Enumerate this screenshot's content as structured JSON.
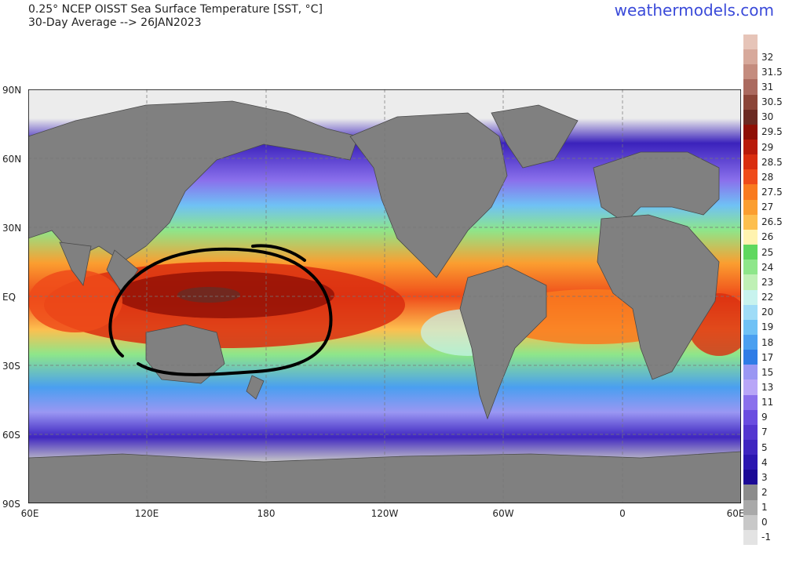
{
  "header": {
    "title": "0.25° NCEP OISST Sea Surface Temperature [SST, °C]",
    "subtitle": "30-Day Average --> 26JAN2023",
    "brand": "weathermodels.com"
  },
  "map": {
    "lat_labels": [
      "90N",
      "60N",
      "30N",
      "EQ",
      "30S",
      "60S",
      "90S"
    ],
    "lon_labels": [
      "60E",
      "120E",
      "180",
      "120W",
      "60W",
      "0",
      "60E"
    ],
    "annotation": "hand-drawn circle around the western Pacific warm pool"
  },
  "colorbar": {
    "levels": [
      {
        "label": "",
        "color": "#e6c4b8"
      },
      {
        "label": "32",
        "color": "#d7a99b"
      },
      {
        "label": "31.5",
        "color": "#c48c7e"
      },
      {
        "label": "31",
        "color": "#ab6a5f"
      },
      {
        "label": "30.5",
        "color": "#8b4538"
      },
      {
        "label": "30",
        "color": "#6b2a22"
      },
      {
        "label": "29.5",
        "color": "#8e0f05"
      },
      {
        "label": "29",
        "color": "#b81a0a"
      },
      {
        "label": "28.5",
        "color": "#d92d0f"
      },
      {
        "label": "28",
        "color": "#ef4b1a"
      },
      {
        "label": "27.5",
        "color": "#f97a1f"
      },
      {
        "label": "27",
        "color": "#fb9e30"
      },
      {
        "label": "26.5",
        "color": "#fdbf4f"
      },
      {
        "label": "26",
        "color": "#fff3b0"
      },
      {
        "label": "25",
        "color": "#5fd85f"
      },
      {
        "label": "24",
        "color": "#8ee68a"
      },
      {
        "label": "23",
        "color": "#bff0b5"
      },
      {
        "label": "22",
        "color": "#c8f3ee"
      },
      {
        "label": "20",
        "color": "#9fdcf7"
      },
      {
        "label": "19",
        "color": "#6fc1f5"
      },
      {
        "label": "18",
        "color": "#4a9ff0"
      },
      {
        "label": "17",
        "color": "#2f7ce6"
      },
      {
        "label": "15",
        "color": "#9a97f3"
      },
      {
        "label": "13",
        "color": "#b8a6f7"
      },
      {
        "label": "11",
        "color": "#8a70ec"
      },
      {
        "label": "9",
        "color": "#6a4de0"
      },
      {
        "label": "7",
        "color": "#5436d0"
      },
      {
        "label": "5",
        "color": "#3e25c0"
      },
      {
        "label": "4",
        "color": "#2b16b0"
      },
      {
        "label": "3",
        "color": "#1b0a96"
      },
      {
        "label": "2",
        "color": "#8c8c8c"
      },
      {
        "label": "1",
        "color": "#a9a9a9"
      },
      {
        "label": "0",
        "color": "#c8c8c8"
      },
      {
        "label": "-1",
        "color": "#e3e3e3"
      }
    ]
  }
}
